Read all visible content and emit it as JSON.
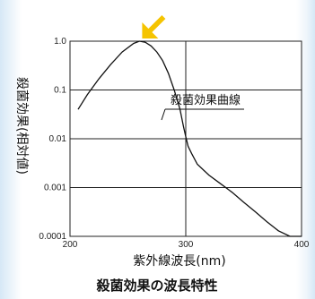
{
  "chart_data": {
    "type": "line",
    "title": "殺菌効果の波長特性",
    "xlabel": "紫外線波長(nm)",
    "ylabel": "殺菌効果(相対値)",
    "xlim": [
      200,
      400
    ],
    "ylim": [
      0.0001,
      1.0
    ],
    "yscale": "log",
    "xticks": [
      "200",
      "300",
      "400"
    ],
    "yticks": [
      "1.0",
      "0.1",
      "0.01",
      "0.001",
      "0.0001"
    ],
    "grid": true,
    "annotation": "殺菌効果曲線",
    "peak_marker_color": "#f5c400",
    "series": [
      {
        "x": [
          207,
          215,
          225,
          235,
          245,
          255,
          260,
          265,
          270,
          275,
          280,
          285,
          290,
          295,
          298,
          300,
          302,
          305,
          310,
          320,
          330,
          340,
          350,
          360,
          370,
          380,
          390,
          400
        ],
        "y": [
          0.04,
          0.08,
          0.17,
          0.33,
          0.6,
          0.9,
          1.0,
          0.95,
          0.8,
          0.6,
          0.4,
          0.22,
          0.1,
          0.04,
          0.018,
          0.011,
          0.007,
          0.005,
          0.003,
          0.0018,
          0.0012,
          0.0008,
          0.0005,
          0.00032,
          0.0002,
          0.00013,
          0.0001,
          0.0001
        ]
      }
    ]
  }
}
